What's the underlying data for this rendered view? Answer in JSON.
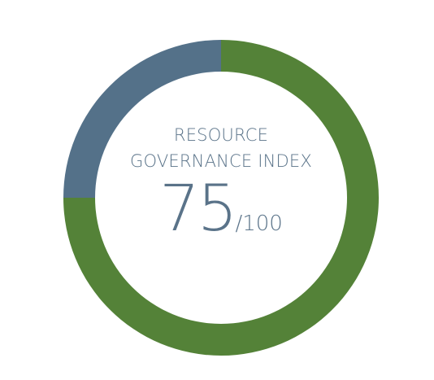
{
  "chart_data": {
    "type": "pie",
    "style": "donut",
    "title_line1": "RESOURCE",
    "title_line2": "GOVERNANCE INDEX",
    "score": "75",
    "max_label": "/100",
    "slices": [
      {
        "value": 75,
        "color": "#548238"
      },
      {
        "value": 25,
        "color": "#547189"
      }
    ]
  }
}
